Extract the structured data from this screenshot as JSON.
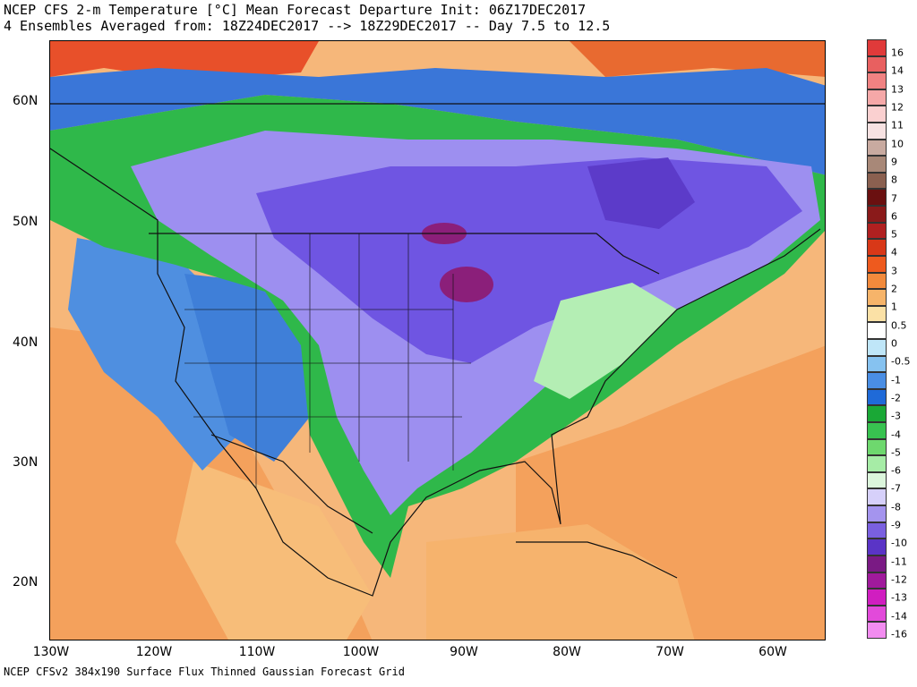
{
  "title": {
    "line1": "NCEP CFS 2-m Temperature [°C] Mean Forecast Departure Init: 06Z17DEC2017",
    "line2": "4 Ensembles Averaged from: 18Z24DEC2017 --> 18Z29DEC2017 -- Day 7.5 to 12.5"
  },
  "footer": "NCEP CFSv2 384x190 Surface Flux Thinned Gaussian Forecast Grid",
  "map": {
    "lon_labels": [
      "130W",
      "120W",
      "110W",
      "100W",
      "90W",
      "80W",
      "70W",
      "60W"
    ],
    "lat_labels": [
      "60N",
      "50N",
      "40N",
      "30N",
      "20N"
    ],
    "regions": [
      {
        "name": "pacific-warm-anomaly",
        "value": 1.5,
        "color": "#f4a15c"
      },
      {
        "name": "atlantic-warm-anomaly",
        "value": 1.5,
        "color": "#f4a15c"
      },
      {
        "name": "caribbean-warm-anomaly",
        "value": 1.0,
        "color": "#f6b36d"
      },
      {
        "name": "mexico-warm-anomaly",
        "value": 1.0,
        "color": "#f7bd79"
      },
      {
        "name": "arctic-warm-anomaly",
        "value": 3.0,
        "color": "#e8502a"
      },
      {
        "name": "west-coast-cool-anomaly",
        "value": -1.5,
        "color": "#4f8fe0"
      },
      {
        "name": "mountain-west-cool-anomaly",
        "value": -2.0,
        "color": "#3f7fd8"
      },
      {
        "name": "canada-cold-band",
        "value": -4.5,
        "color": "#2fb84a"
      },
      {
        "name": "central-us-cold-anomaly",
        "value": -8.0,
        "color": "#9d8ff0"
      },
      {
        "name": "great-lakes-cold-anomaly",
        "value": -9.5,
        "color": "#6f55e2"
      },
      {
        "name": "wisconsin-cold-core",
        "value": -11.5,
        "color": "#8b1f7a"
      },
      {
        "name": "quebec-cold-core",
        "value": -10.5,
        "color": "#5c3bc9"
      },
      {
        "name": "east-coast-transition",
        "value": -6.5,
        "color": "#b4eeb4"
      }
    ]
  },
  "colorbar": {
    "labels": [
      "16",
      "14",
      "13",
      "12",
      "11",
      "10",
      "9",
      "8",
      "7",
      "6",
      "5",
      "4",
      "3",
      "2",
      "1",
      "0.5",
      "0",
      "-0.5",
      "-1",
      "-2",
      "-3",
      "-4",
      "-5",
      "-6",
      "-7",
      "-8",
      "-9",
      "-10",
      "-11",
      "-12",
      "-13",
      "-14",
      "-16"
    ],
    "colors": [
      "#e03a3a",
      "#e86060",
      "#f08282",
      "#f5a8a8",
      "#fad0d0",
      "#f7e2e2",
      "#c8aaa0",
      "#a88878",
      "#8a6050",
      "#6a1010",
      "#8a1a1a",
      "#b02020",
      "#d83818",
      "#ee5a1e",
      "#f28a3c",
      "#f6b46a",
      "#fbe1a6",
      "#ffffff",
      "#bfe6f8",
      "#86c2f0",
      "#4a8ee4",
      "#1f6ad8",
      "#1aa836",
      "#38c250",
      "#6ed86e",
      "#a6eca6",
      "#dcf6dc",
      "#d6d0fa",
      "#a494ee",
      "#7a60e0",
      "#5a34c6",
      "#7a1a84",
      "#a01a9c",
      "#d01ec0",
      "#e24ada",
      "#f28cf0"
    ]
  }
}
